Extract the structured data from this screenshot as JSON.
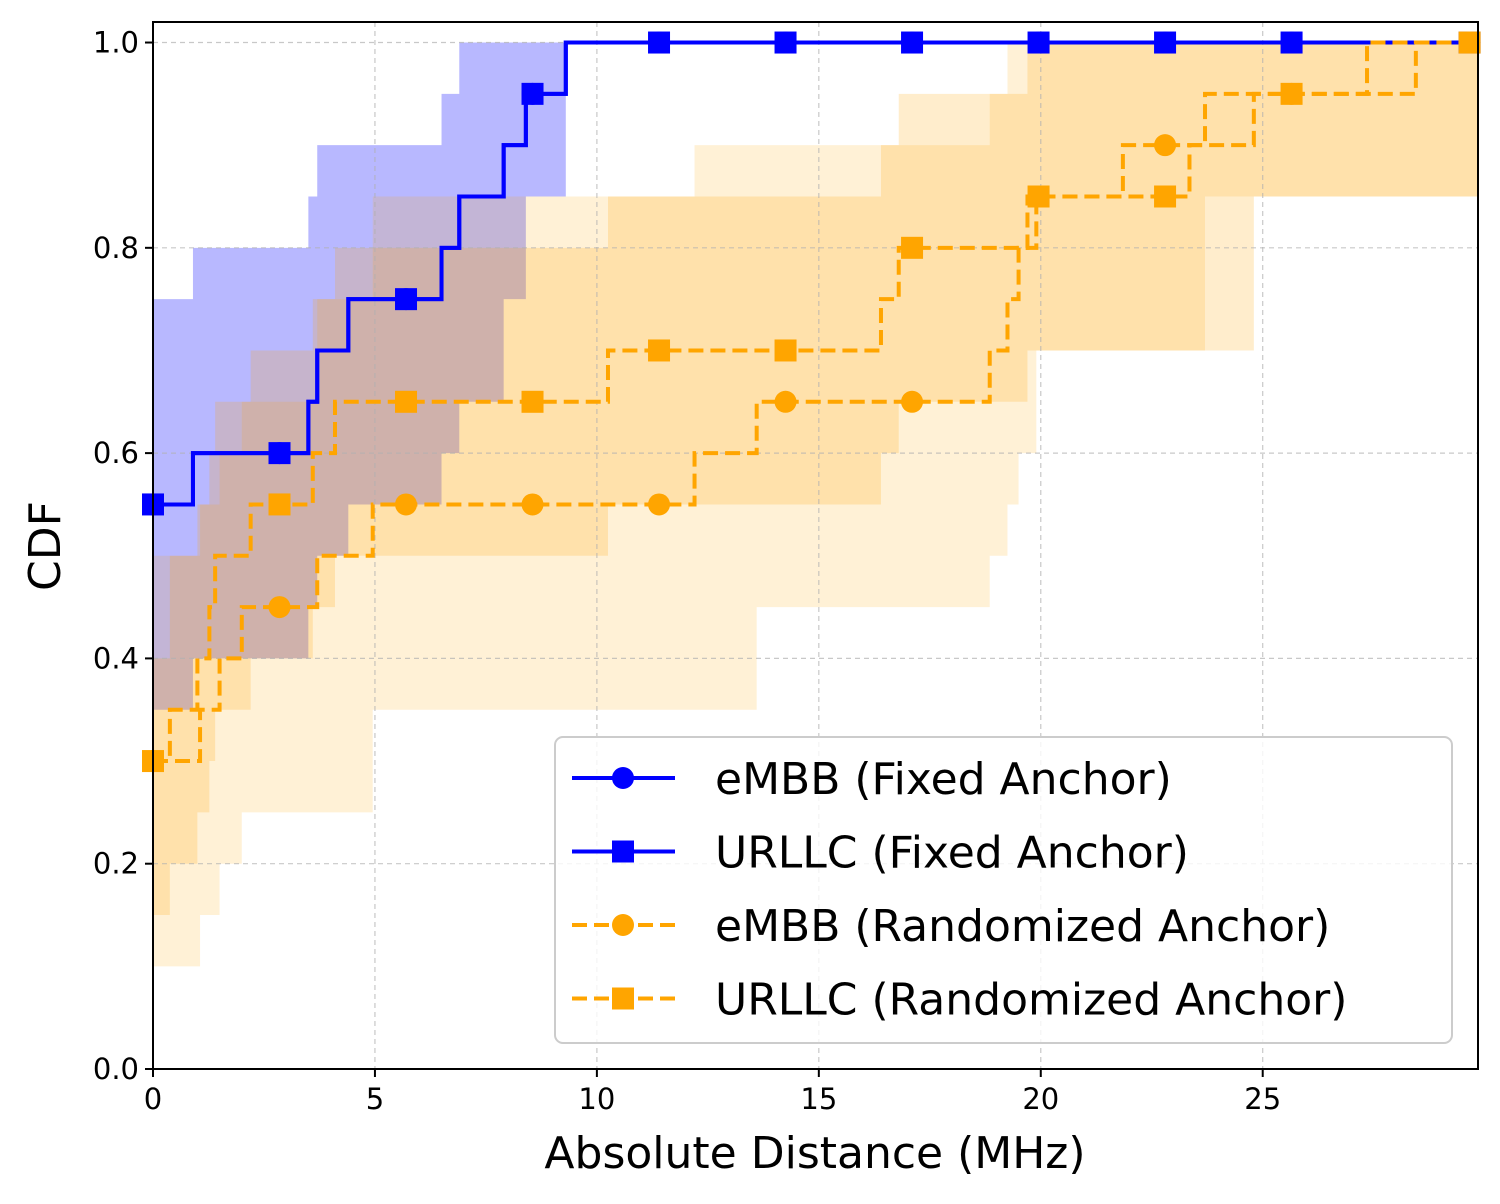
{
  "chart_data": {
    "type": "line",
    "step": true,
    "xlabel": "Absolute Distance (MHz)",
    "ylabel": "CDF",
    "xlim": [
      0,
      29.85
    ],
    "ylim": [
      0,
      1.02
    ],
    "xticks": [
      "0",
      "5",
      "10",
      "15",
      "20",
      "25"
    ],
    "xtick_values": [
      0,
      5,
      10,
      15,
      20,
      25
    ],
    "yticks": [
      "0.0",
      "0.2",
      "0.4",
      "0.6",
      "0.8",
      "1.0"
    ],
    "ytick_values": [
      0,
      0.2,
      0.4,
      0.6,
      0.8,
      1.0
    ],
    "grid": true,
    "legend_placement": "lower-right",
    "marker_x": [
      0,
      2.85,
      5.7,
      8.55,
      11.4,
      14.25,
      17.1,
      19.95,
      22.8,
      25.65,
      29.66
    ],
    "series": [
      {
        "name": "eMBB (Fixed Anchor)",
        "color": "#0000ff",
        "marker": "circle",
        "linestyle": "solid",
        "x": [
          0,
          0.9,
          3.5,
          3.7,
          4.4,
          6.5,
          6.9,
          7.9,
          8.4,
          9.3
        ],
        "y": [
          0.55,
          0.6,
          0.65,
          0.7,
          0.75,
          0.8,
          0.85,
          0.9,
          0.95,
          1.0
        ],
        "band_color": "#0000ff",
        "band_opacity": 0.28,
        "band_lower": [
          0.35,
          0.4,
          0.45,
          0.5,
          0.55,
          0.6,
          0.65,
          0.75,
          0.85,
          1.0
        ],
        "band_upper": [
          0.75,
          0.8,
          0.85,
          0.9,
          0.9,
          0.95,
          1.0,
          1.0,
          1.0,
          1.0
        ]
      },
      {
        "name": "URLLC (Fixed Anchor)",
        "color": "#0000ff",
        "marker": "square",
        "linestyle": "solid",
        "x": [
          0,
          0.9,
          3.5,
          3.7,
          4.4,
          6.5,
          6.9,
          7.9,
          8.4,
          9.3
        ],
        "y": [
          0.55,
          0.6,
          0.65,
          0.7,
          0.75,
          0.8,
          0.85,
          0.9,
          0.95,
          1.0
        ]
      },
      {
        "name": "eMBB (Randomized Anchor)",
        "color": "#ffa500",
        "marker": "circle",
        "linestyle": "dashed",
        "x": [
          0,
          1.06,
          1.5,
          2.0,
          3.7,
          4.95,
          12.2,
          13.6,
          18.85,
          19.25,
          19.5,
          19.9,
          21.85,
          23.7,
          28.45
        ],
        "y": [
          0.3,
          0.35,
          0.4,
          0.45,
          0.5,
          0.55,
          0.6,
          0.65,
          0.7,
          0.75,
          0.8,
          0.85,
          0.9,
          0.95,
          1.0
        ],
        "band_color": "#ffa500",
        "band_opacity": 0.16,
        "band_lower": [
          0.1,
          0.15,
          0.2,
          0.25,
          0.25,
          0.35,
          0.35,
          0.45,
          0.5,
          0.55,
          0.6,
          0.7,
          0.7,
          0.85,
          0.85
        ],
        "band_upper": [
          0.5,
          0.55,
          0.6,
          0.65,
          0.75,
          0.85,
          0.9,
          0.9,
          0.95,
          1.0,
          1.0,
          1.0,
          1.0,
          1.0,
          1.0
        ]
      },
      {
        "name": "URLLC (Randomized Anchor)",
        "color": "#ffa500",
        "marker": "square",
        "linestyle": "dashed",
        "x": [
          0,
          0.38,
          1.0,
          1.27,
          1.4,
          2.2,
          3.6,
          4.1,
          10.25,
          16.4,
          16.8,
          19.7,
          23.35,
          24.8,
          27.35
        ],
        "y": [
          0.3,
          0.35,
          0.4,
          0.45,
          0.5,
          0.55,
          0.6,
          0.65,
          0.7,
          0.75,
          0.8,
          0.85,
          0.9,
          0.95,
          1.0
        ],
        "band_color": "#ffa500",
        "band_opacity": 0.2,
        "band_lower": [
          0.15,
          0.2,
          0.25,
          0.3,
          0.35,
          0.4,
          0.45,
          0.5,
          0.55,
          0.6,
          0.65,
          0.7,
          0.7,
          0.85,
          0.85
        ],
        "band_upper": [
          0.4,
          0.5,
          0.55,
          0.6,
          0.65,
          0.7,
          0.75,
          0.8,
          0.85,
          0.9,
          0.95,
          1.0,
          1.0,
          1.0,
          1.0
        ]
      }
    ]
  }
}
